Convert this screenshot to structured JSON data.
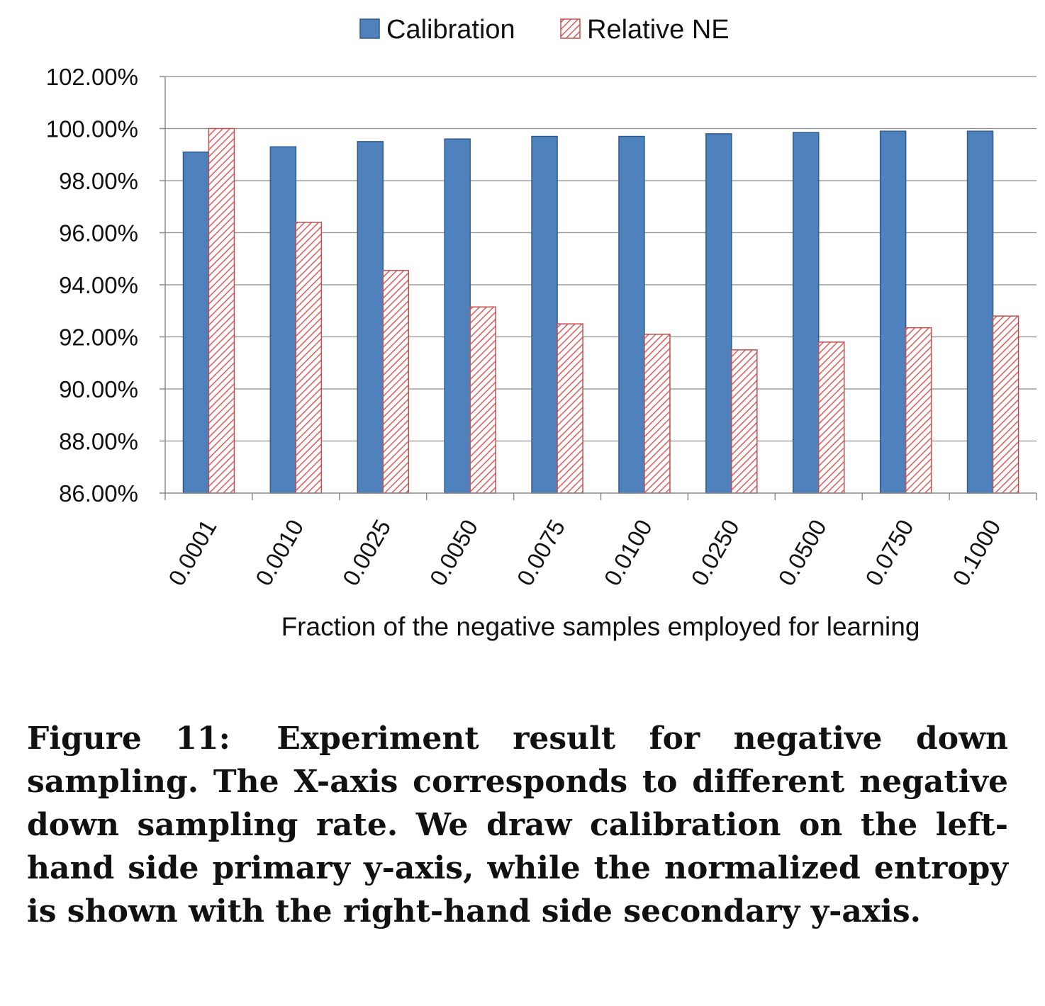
{
  "chart_data": {
    "type": "bar",
    "categories": [
      "0.0001",
      "0.0010",
      "0.0025",
      "0.0050",
      "0.0075",
      "0.0100",
      "0.0250",
      "0.0500",
      "0.0750",
      "0.1000"
    ],
    "series": [
      {
        "name": "Calibration",
        "color": "#4F81BD",
        "values": [
          99.1,
          99.3,
          99.5,
          99.6,
          99.7,
          99.7,
          99.8,
          99.85,
          99.9,
          99.9
        ]
      },
      {
        "name": "Relative NE",
        "color": "#E05A5A",
        "pattern": "diagonal-hatch",
        "values": [
          100.0,
          96.4,
          94.55,
          93.15,
          92.5,
          92.1,
          91.5,
          91.8,
          92.35,
          92.8
        ]
      }
    ],
    "xlabel": "Fraction of the negative samples employed for learning",
    "ylabel": "",
    "ylim": [
      86,
      102
    ],
    "yticks": [
      "86.00%",
      "88.00%",
      "90.00%",
      "92.00%",
      "94.00%",
      "96.00%",
      "98.00%",
      "100.00%",
      "102.00%"
    ],
    "grid": true,
    "legend": "top-center"
  },
  "caption": {
    "label": "Figure 11:",
    "text": "Experiment result for negative down sampling. The X-axis corresponds to different negative down sampling rate. We draw calibration on the left-hand side primary y-axis, while the normalized entropy is shown with the right-hand side secondary y-axis."
  }
}
